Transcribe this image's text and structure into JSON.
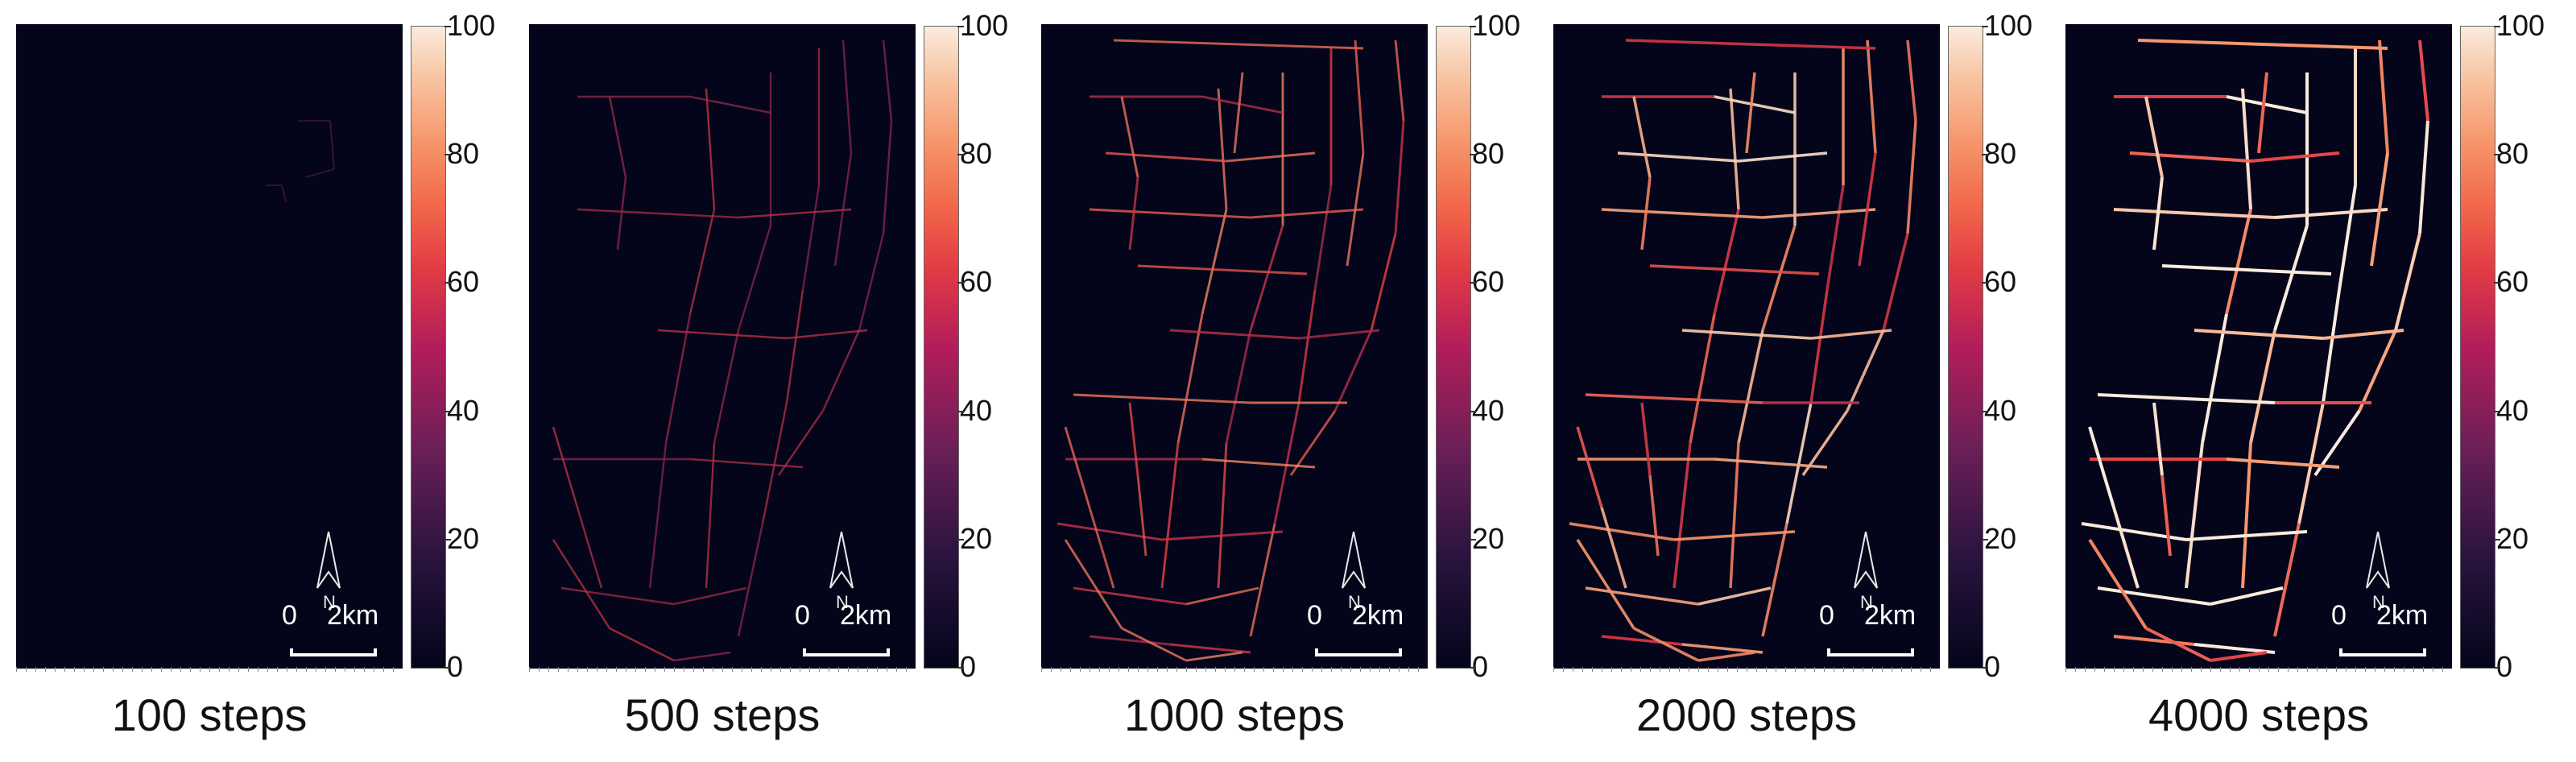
{
  "panels": [
    {
      "caption": "100 steps",
      "density": 0.04,
      "coverage": "small"
    },
    {
      "caption": "500 steps",
      "density": 0.35,
      "coverage": "east"
    },
    {
      "caption": "1000 steps",
      "density": 0.55,
      "coverage": "full"
    },
    {
      "caption": "2000 steps",
      "density": 0.8,
      "coverage": "full"
    },
    {
      "caption": "4000 steps",
      "density": 1.0,
      "coverage": "full"
    }
  ],
  "colorbar": {
    "ticks": [
      "100",
      "80",
      "60",
      "40",
      "20",
      "0"
    ],
    "min": 0,
    "max": 100
  },
  "north_label": "N",
  "scale": {
    "start": "0",
    "end": "2km"
  },
  "colors": {
    "background": "#04051a",
    "low": "#6b1f57",
    "mid": "#e13b45",
    "high": "#faebdd"
  }
}
